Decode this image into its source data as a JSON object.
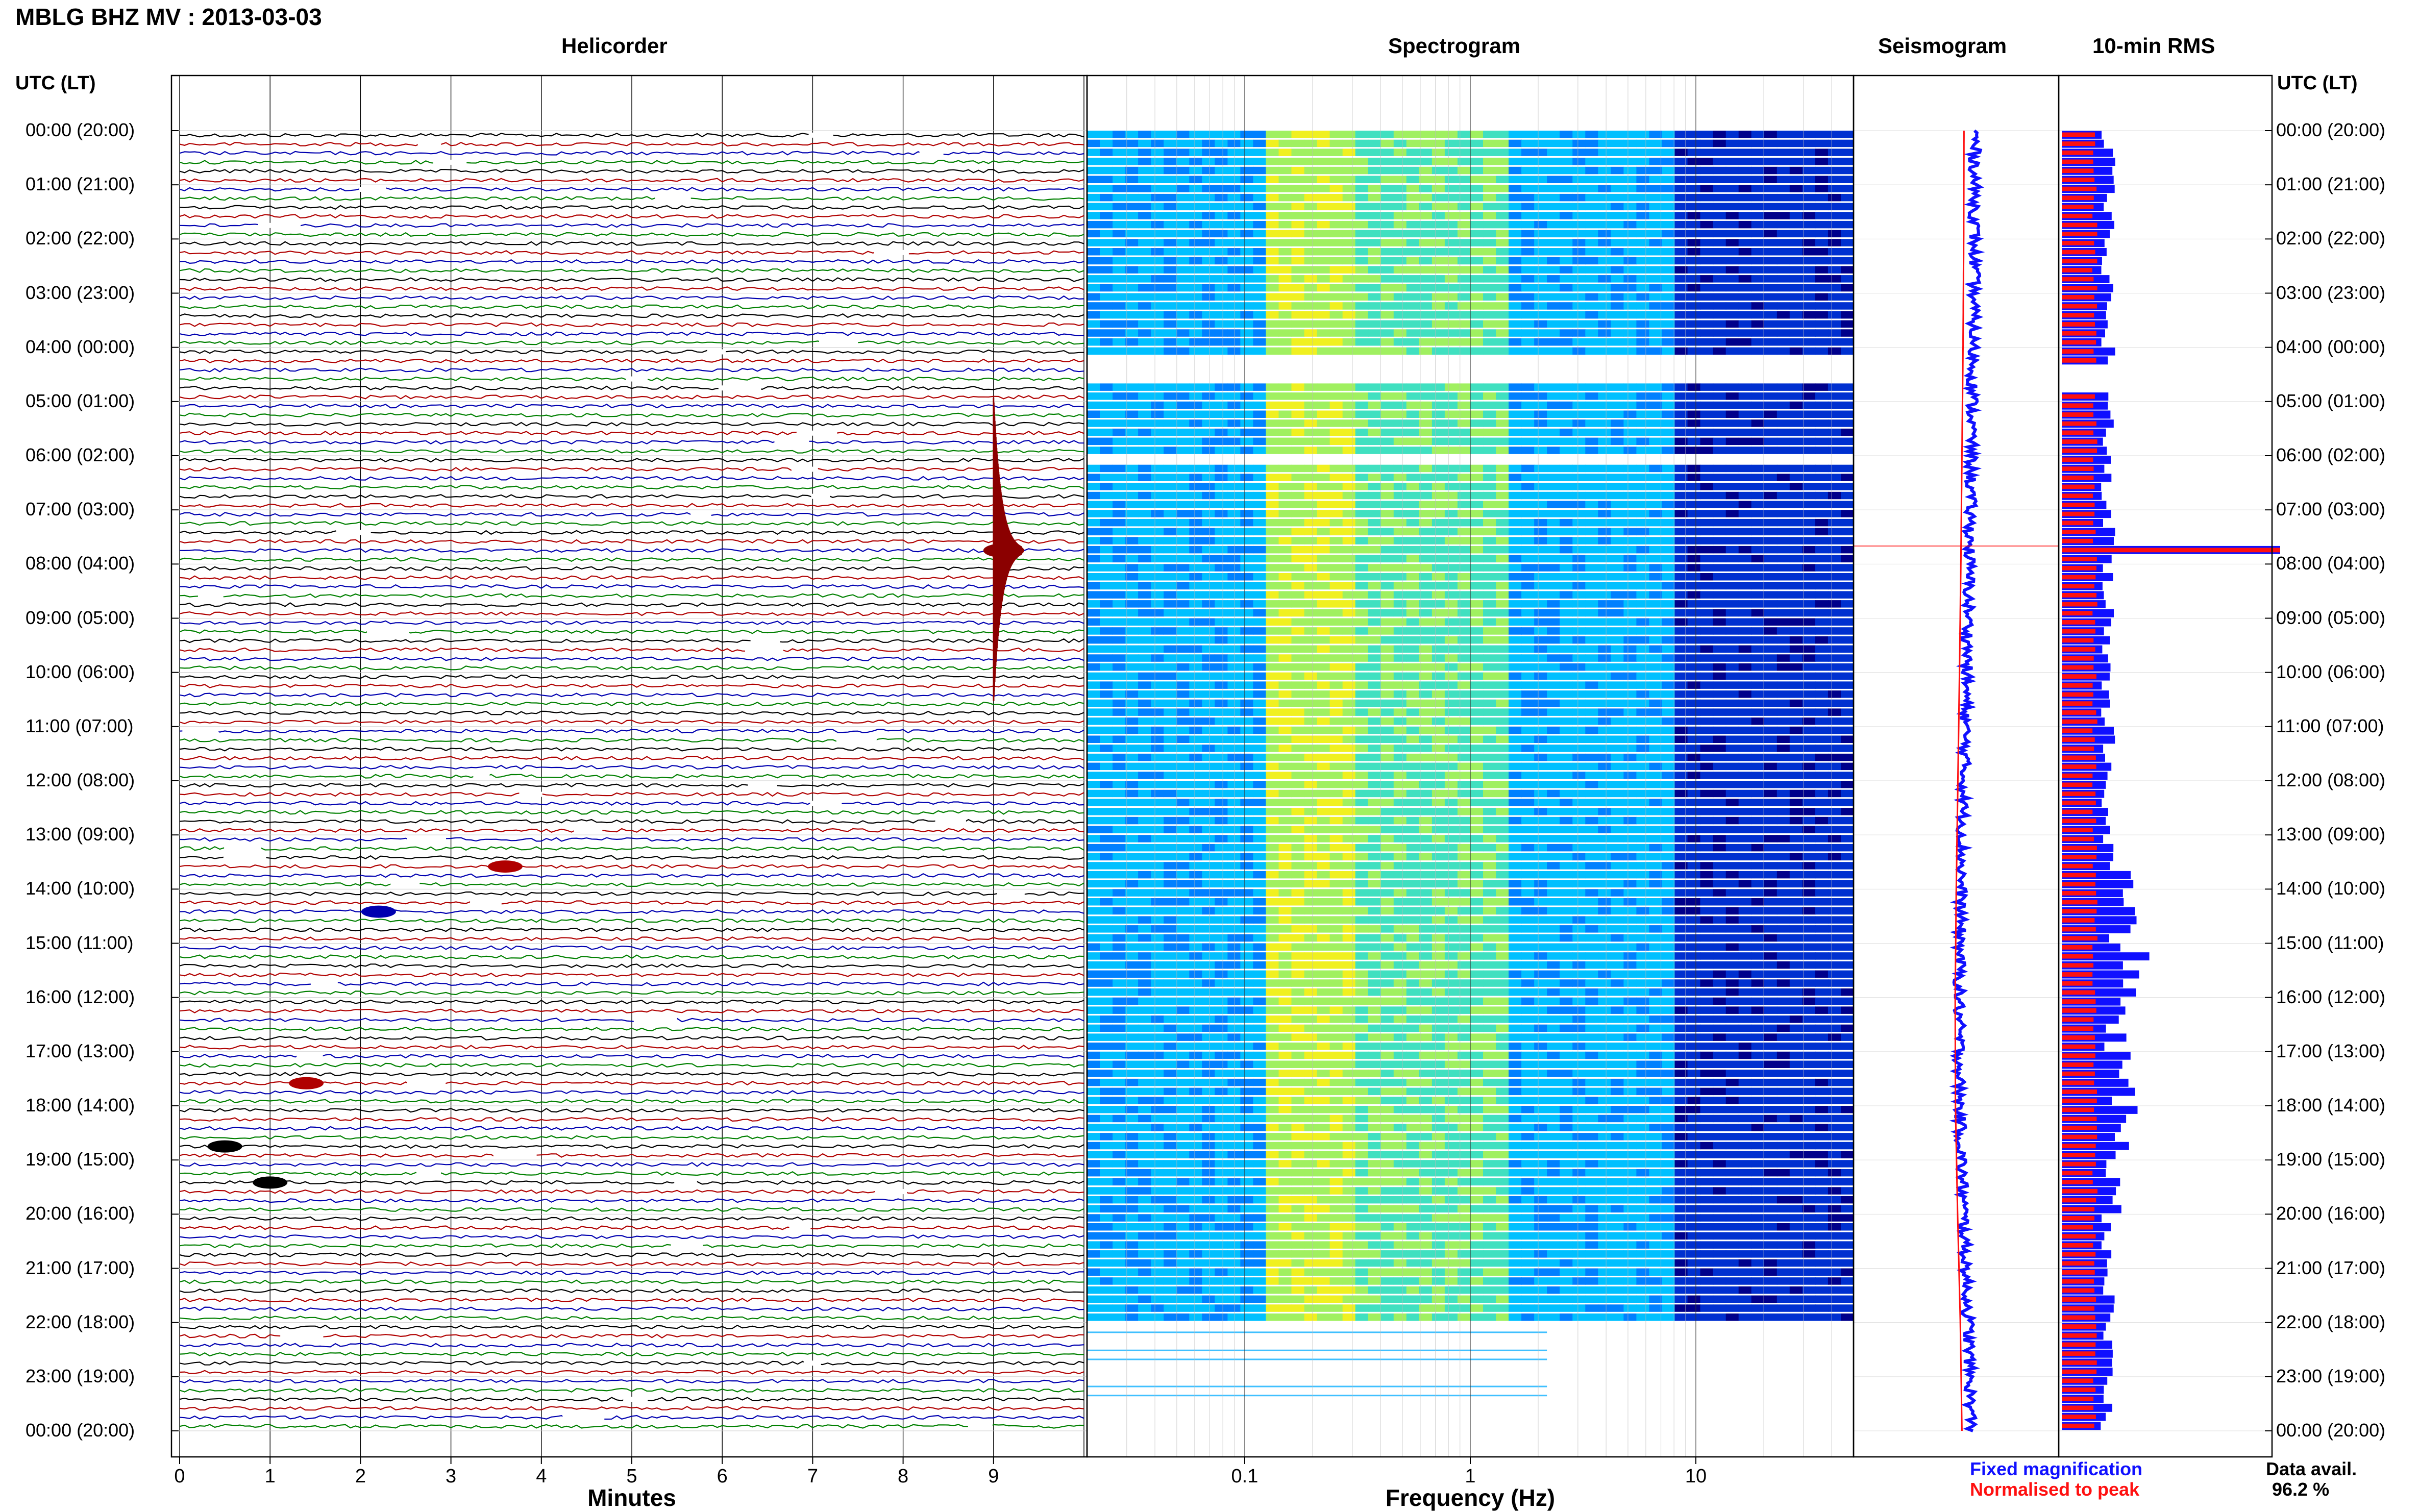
{
  "header": {
    "title": "MBLG BHZ MV : 2013-03-03",
    "utc_label_left": "UTC (LT)",
    "utc_label_right": "UTC (LT)"
  },
  "panels": {
    "helicorder": "Helicorder",
    "spectrogram": "Spectrogram",
    "seismogram": "Seismogram",
    "rms": "10-min RMS"
  },
  "time_labels": [
    "00:00 (20:00)",
    "01:00 (21:00)",
    "02:00 (22:00)",
    "03:00 (23:00)",
    "04:00 (00:00)",
    "05:00 (01:00)",
    "06:00 (02:00)",
    "07:00 (03:00)",
    "08:00 (04:00)",
    "09:00 (05:00)",
    "10:00 (06:00)",
    "11:00 (07:00)",
    "12:00 (08:00)",
    "13:00 (09:00)",
    "14:00 (10:00)",
    "15:00 (11:00)",
    "16:00 (12:00)",
    "17:00 (13:00)",
    "18:00 (14:00)",
    "19:00 (15:00)",
    "20:00 (16:00)",
    "21:00 (17:00)",
    "22:00 (18:00)",
    "23:00 (19:00)",
    "00:00 (20:00)"
  ],
  "legend": {
    "fixed": "Fixed magnification",
    "normalised": "Normalised to peak",
    "fixed_color": "#1010ff",
    "normalised_color": "#ff1010"
  },
  "data_avail": {
    "label": "Data avail.",
    "value": "96.2 %"
  },
  "chart_data": [
    {
      "type": "line",
      "panel": "helicorder",
      "title": "Helicorder",
      "xlabel": "Minutes",
      "ylabel": "UTC (LT)",
      "x_ticks": [
        0,
        1,
        2,
        3,
        4,
        5,
        6,
        7,
        8,
        9
      ],
      "xlim": [
        0,
        10
      ],
      "rows": 144,
      "row_minutes": 10,
      "trace_colors": [
        "#000000",
        "#b00000",
        "#0000b0",
        "#008000"
      ],
      "grid": true,
      "events": [
        {
          "utc": "07:40",
          "minute": 9.0,
          "amplitude": "large"
        },
        {
          "utc": "13:30",
          "minute": 3.6,
          "amplitude": "medium"
        },
        {
          "utc": "14:20",
          "minute": 2.2,
          "amplitude": "medium"
        },
        {
          "utc": "17:30",
          "minute": 1.4,
          "amplitude": "medium"
        },
        {
          "utc": "18:40",
          "minute": 0.5,
          "amplitude": "medium"
        },
        {
          "utc": "19:20",
          "minute": 1.0,
          "amplitude": "medium"
        }
      ]
    },
    {
      "type": "heatmap",
      "panel": "spectrogram",
      "title": "Spectrogram",
      "xlabel": "Frequency (Hz)",
      "x_scale": "log",
      "x_tick_labels": [
        "0.1",
        "1",
        "10"
      ],
      "x_ticks": [
        0.1,
        1,
        10
      ],
      "xlim": [
        0.02,
        50
      ],
      "rows": 144,
      "colormap": [
        "#00008b",
        "#0030d0",
        "#0080ff",
        "#00c0ff",
        "#40e0c0",
        "#a0f060",
        "#f0f020"
      ],
      "gaps_utc": [
        [
          "04:10",
          "04:40"
        ],
        [
          "06:00",
          "06:10"
        ],
        [
          "22:00",
          "24:00"
        ]
      ]
    },
    {
      "type": "line",
      "panel": "seismogram",
      "title": "Seismogram",
      "series": [
        {
          "name": "Fixed magnification",
          "color": "#1010ff"
        },
        {
          "name": "Normalised to peak",
          "color": "#ff1010"
        }
      ],
      "profile_utc_hours": [
        0,
        2,
        4,
        6,
        8,
        10,
        12,
        14,
        16,
        18,
        20,
        22,
        24
      ],
      "profile_offset": [
        0.35,
        0.33,
        0.28,
        0.2,
        0.12,
        0.02,
        -0.1,
        -0.22,
        -0.3,
        -0.28,
        -0.12,
        0.08,
        0.2
      ]
    },
    {
      "type": "bar",
      "panel": "rms",
      "title": "10-min RMS",
      "orientation": "horizontal",
      "rows": 144,
      "series": [
        {
          "name": "Fixed magnification",
          "color": "#1010ff"
        },
        {
          "name": "Normalised to peak",
          "color": "#ff1010"
        }
      ],
      "peak_utc": "07:40"
    }
  ]
}
